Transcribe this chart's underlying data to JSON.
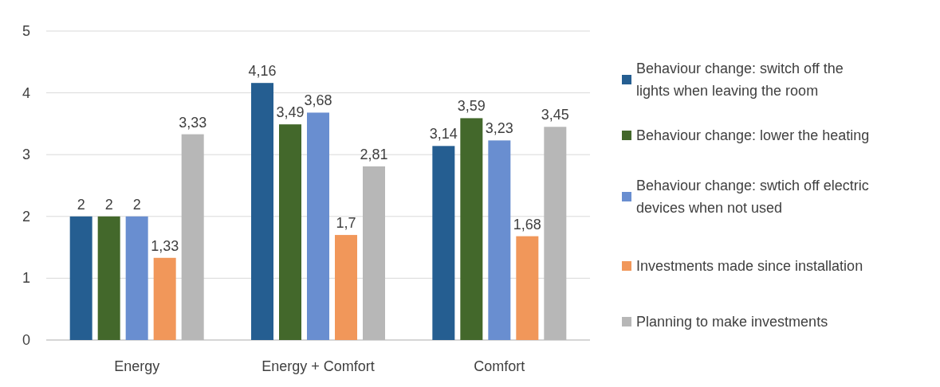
{
  "chart_data": {
    "type": "bar",
    "categories": [
      "Energy",
      "Energy + Comfort",
      "Comfort"
    ],
    "series": [
      {
        "name": "Behaviour change: switch off the lights when leaving the room",
        "color": "#255e91",
        "values": [
          2,
          4.16,
          3.14
        ],
        "value_labels": [
          "2",
          "4,16",
          "3,14"
        ]
      },
      {
        "name": "Behaviour change: lower the heating",
        "color": "#43682b",
        "values": [
          2,
          3.49,
          3.59
        ],
        "value_labels": [
          "2",
          "3,49",
          "3,59"
        ]
      },
      {
        "name": "Behaviour change: swtich off electric devices when not used",
        "color": "#698ed0",
        "values": [
          2,
          3.68,
          3.23
        ],
        "value_labels": [
          "2",
          "3,68",
          "3,23"
        ]
      },
      {
        "name": "Investments made since installation",
        "color": "#f1975a",
        "values": [
          1.33,
          1.7,
          1.68
        ],
        "value_labels": [
          "1,33",
          "1,7",
          "1,68"
        ]
      },
      {
        "name": "Planning to make investments",
        "color": "#b7b7b7",
        "values": [
          3.33,
          2.81,
          3.45
        ],
        "value_labels": [
          "3,33",
          "2,81",
          "3,45"
        ]
      }
    ],
    "ylim": [
      0,
      5
    ],
    "yticks": [
      0,
      1,
      2,
      3,
      4,
      5
    ],
    "grid": "y",
    "legend": "right"
  }
}
